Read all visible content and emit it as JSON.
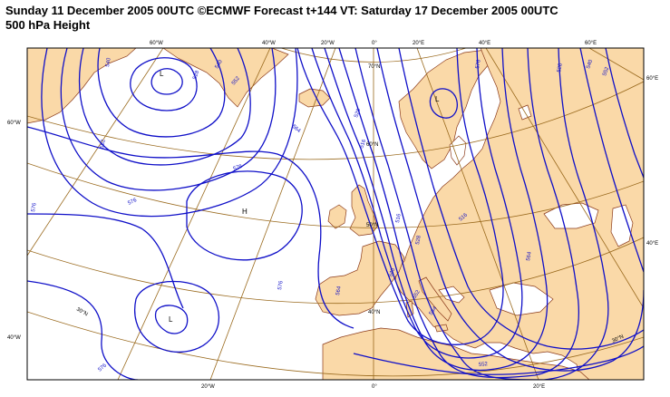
{
  "header": {
    "line1": "Sunday 11 December 2005 00UTC ©ECMWF Forecast t+144 VT: Saturday 17 December 2005 00UTC",
    "line2": "500 hPa Height"
  },
  "colors": {
    "land": "#fad9a8",
    "sea": "#ffffff",
    "coast": "#8b3a1a",
    "grid": "#9a6a1e",
    "contour": "#0f0fc8"
  },
  "graticule_labels": {
    "top": [
      "60°W",
      "40°W",
      "20°W",
      "0°",
      "20°E",
      "40°E",
      "60°E"
    ],
    "bottom": [
      "20°W",
      "0°",
      "20°E"
    ],
    "left": [
      "60°W",
      "40°W"
    ],
    "right": [
      "60°E",
      "40°E"
    ],
    "lat": [
      "70°N",
      "60°N",
      "50°N",
      "40°N",
      "30°N",
      "30°N"
    ]
  },
  "pressure_centers": [
    {
      "type": "L"
    },
    {
      "type": "L"
    },
    {
      "type": "H"
    },
    {
      "type": "L"
    }
  ],
  "contour_labels": [
    "540",
    "528",
    "540",
    "552",
    "564",
    "576",
    "552",
    "576",
    "576",
    "576",
    "564",
    "528",
    "516",
    "516",
    "528",
    "540",
    "552",
    "564",
    "576",
    "516",
    "528",
    "540",
    "552",
    "564",
    "552",
    "576"
  ]
}
